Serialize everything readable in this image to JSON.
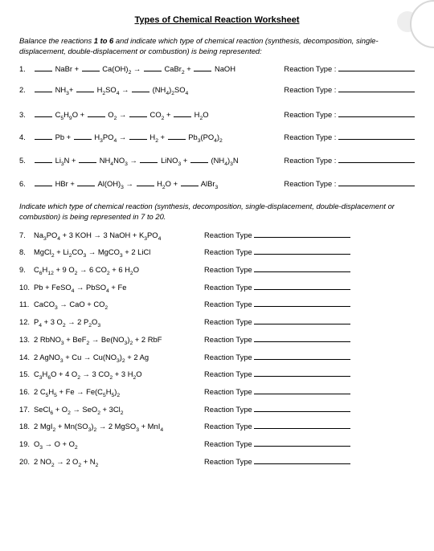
{
  "title": "Types of Chemical Reaction Worksheet",
  "instructions1_a": "Balance the reactions ",
  "instructions1_b": "1 to 6",
  "instructions1_c": " and indicate which type of chemical reaction (synthesis, decomposition, single-displacement, double-displacement or combustion) is being represented:",
  "instructions2": "Indicate which type of chemical reaction (synthesis, decomposition, single-displacement, double-displacement or combustion) is being represented in 7 to 20.",
  "reaction_type_label": "Reaction Type :",
  "reaction_type_label2": "Reaction Type",
  "section1": [
    {
      "n": "1.",
      "html": "<span class='bl'></span> NaBr + <span class='bl'></span> Ca(OH)<sub>2</sub> → <span class='bl'></span> CaBr<sub>2</sub> + <span class='bl'></span> NaOH"
    },
    {
      "n": "2.",
      "html": "<span class='bl'></span> NH<sub>3</sub>+ <span class='bl'></span> H<sub>2</sub>SO<sub>4</sub> → <span class='bl'></span> (NH<sub>4</sub>)<sub>2</sub>SO<sub>4</sub>"
    },
    {
      "n": "3.",
      "html": "<span class='bl'></span> C<sub>5</sub>H<sub>9</sub>O + <span class='bl'></span> O<sub>2</sub> → <span class='bl'></span> CO<sub>2</sub> + <span class='bl'></span> H<sub>2</sub>O"
    },
    {
      "n": "4.",
      "html": "<span class='bl'></span> Pb + <span class='bl'></span> H<sub>3</sub>PO<sub>4</sub> → <span class='bl'></span> H<sub>2</sub> + <span class='bl'></span> Pb<sub>3</sub>(PO<sub>4</sub>)<sub>2</sub>"
    },
    {
      "n": "5.",
      "html": "<span class='bl'></span> Li<sub>3</sub>N + <span class='bl'></span> NH<sub>4</sub>NO<sub>3</sub> → <span class='bl'></span> LiNO<sub>3</sub> + <span class='bl'></span> (NH<sub>4</sub>)<sub>3</sub>N"
    },
    {
      "n": "6.",
      "html": "<span class='bl'></span> HBr + <span class='bl'></span> Al(OH)<sub>3</sub> → <span class='bl'></span> H<sub>2</sub>O + <span class='bl'></span> AlBr<sub>3</sub>"
    }
  ],
  "section2": [
    {
      "n": "7.",
      "html": "Na<sub>3</sub>PO<sub>4</sub> + 3 KOH → 3 NaOH + K<sub>3</sub>PO<sub>4</sub>"
    },
    {
      "n": "8.",
      "html": "MgCl<sub>2</sub> + Li<sub>2</sub>CO<sub>3</sub> → MgCO<sub>3</sub> + 2 LiCl"
    },
    {
      "n": "9.",
      "html": "C<sub>6</sub>H<sub>12</sub> + 9 O<sub>2</sub> → 6 CO<sub>2</sub> + 6 H<sub>2</sub>O"
    },
    {
      "n": "10.",
      "html": "Pb + FeSO<sub>4</sub> → PbSO<sub>4</sub> + Fe"
    },
    {
      "n": "11.",
      "html": "CaCO<sub>3</sub> → CaO + CO<sub>2</sub>"
    },
    {
      "n": "12.",
      "html": "P<sub>4</sub> +  3 O<sub>2</sub> → 2 P<sub>2</sub>O<sub>3</sub>"
    },
    {
      "n": "13.",
      "html": "2 RbNO<sub>3</sub> + BeF<sub>2</sub> → Be(NO<sub>3</sub>)<sub>2</sub> + 2 RbF"
    },
    {
      "n": "14.",
      "html": "2 AgNO<sub>3</sub> + Cu → Cu(NO<sub>3</sub>)<sub>2</sub> + 2 Ag"
    },
    {
      "n": "15.",
      "html": "C<sub>3</sub>H<sub>6</sub>O + 4 O<sub>2</sub> → 3 CO<sub>2</sub> + 3 H<sub>2</sub>O"
    },
    {
      "n": "16.",
      "html": "2 C<sub>5</sub>H<sub>5</sub> + Fe → Fe(C<sub>5</sub>H<sub>5</sub>)<sub>2</sub>"
    },
    {
      "n": "17.",
      "html": "SeCl<sub>6</sub> + O<sub>2</sub> → SeO<sub>2</sub> + 3Cl<sub>2</sub>"
    },
    {
      "n": "18.",
      "html": "2 MgI<sub>2</sub> + Mn(SO<sub>3</sub>)<sub>2</sub> → 2 MgSO<sub>3</sub> + MnI<sub>4</sub>"
    },
    {
      "n": "19.",
      "html": "O<sub>3</sub>  → O + O<sub>2</sub>"
    },
    {
      "n": "20.",
      "html": "2 NO<sub>2</sub> → 2 O<sub>2</sub> + N<sub>2</sub>"
    }
  ]
}
